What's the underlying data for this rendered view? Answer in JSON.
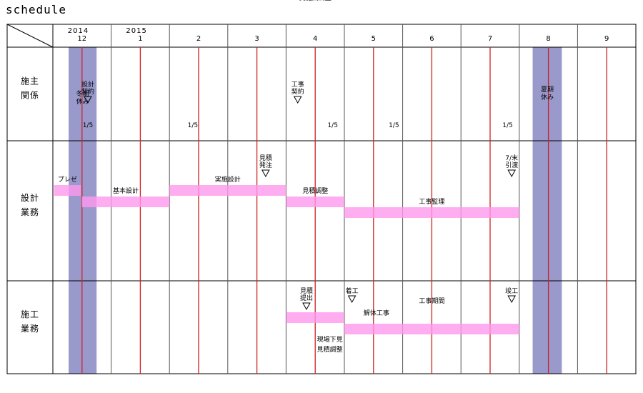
{
  "title": "schedule",
  "chart_data": {
    "type": "gantt",
    "years": [
      {
        "label": "2014",
        "month": 12
      },
      {
        "label": "2015",
        "month": 1
      }
    ],
    "months": [
      {
        "label": "12",
        "index": 0
      },
      {
        "label": "1",
        "index": 1
      },
      {
        "label": "2",
        "index": 2
      },
      {
        "label": "3",
        "index": 3
      },
      {
        "label": "4",
        "index": 4
      },
      {
        "label": "5",
        "index": 5
      },
      {
        "label": "6",
        "index": 6
      },
      {
        "label": "7",
        "index": 7
      },
      {
        "label": "8",
        "index": 8
      },
      {
        "label": "9",
        "index": 9
      }
    ],
    "rows": [
      {
        "id": "owner",
        "label": [
          "施",
          "主",
          "関",
          "係"
        ]
      },
      {
        "id": "design",
        "label": [
          "設",
          "計",
          "業",
          "務"
        ]
      },
      {
        "id": "construction",
        "label": [
          "施",
          "工",
          "業",
          "務"
        ]
      }
    ],
    "holidays": [
      {
        "label": [
          "冬期",
          "休み"
        ],
        "start": -0.23,
        "end": 0.25
      },
      {
        "label": [
          "夏期",
          "休み"
        ],
        "start": 7.73,
        "end": 8.23
      }
    ],
    "bars": [
      {
        "row": "design",
        "label": "プレゼ",
        "start": -0.48,
        "end": -0.02,
        "lane": 0
      },
      {
        "row": "design",
        "label": "基本設計",
        "start": 0.0,
        "end": 1.5,
        "lane": 1
      },
      {
        "row": "design",
        "label": "実施設計",
        "start": 1.5,
        "end": 3.5,
        "lane": 0
      },
      {
        "row": "design",
        "label": "見積調整",
        "start": 3.5,
        "end": 4.5,
        "lane": 1
      },
      {
        "row": "design",
        "label": "工事監理",
        "start": 4.5,
        "end": 7.5,
        "lane": 2
      },
      {
        "row": "construction",
        "label": "",
        "start": 3.5,
        "end": 4.5,
        "lane": 0
      },
      {
        "row": "construction",
        "label": "",
        "start": 4.5,
        "end": 7.5,
        "lane": 1
      }
    ],
    "milestones": [
      {
        "row": "owner",
        "label": [
          "設計",
          "契約"
        ],
        "at": 0.1
      },
      {
        "row": "owner",
        "label": [
          "工事",
          "契約"
        ],
        "at": 3.7
      },
      {
        "row": "design",
        "label": [
          "見積",
          "発注"
        ],
        "at": 3.15
      },
      {
        "row": "design",
        "label": [
          "7/末",
          "引渡"
        ],
        "at": 7.37
      },
      {
        "row": "construction",
        "label": [
          "見積",
          "提出"
        ],
        "at": 3.85
      },
      {
        "row": "construction",
        "label": [
          "着工"
        ],
        "at": 4.63
      },
      {
        "row": "construction",
        "label": [
          "竣工"
        ],
        "at": 7.37
      }
    ],
    "notes": [
      {
        "row": "owner",
        "text": "1/5",
        "at": 0.1
      },
      {
        "row": "owner",
        "text": "1/5",
        "at": 1.9
      },
      {
        "row": "owner",
        "text": "1/5",
        "at": 4.3
      },
      {
        "row": "owner",
        "text": "1/5",
        "at": 5.35
      },
      {
        "row": "owner",
        "text": "1/5",
        "at": 7.3
      },
      {
        "row": "design",
        "text": "実施図調整",
        "at": 4.0,
        "lane": 2
      },
      {
        "row": "construction",
        "text": "解体工事",
        "at": 5.05,
        "lane": 0
      },
      {
        "row": "construction",
        "text": "工事期間",
        "at": 6.0,
        "lane": 0
      },
      {
        "row": "construction",
        "text": "現場下見",
        "at": 4.25,
        "lane": 2
      },
      {
        "row": "construction",
        "text": "見積調整",
        "at": 4.25,
        "lane": 3
      }
    ]
  }
}
